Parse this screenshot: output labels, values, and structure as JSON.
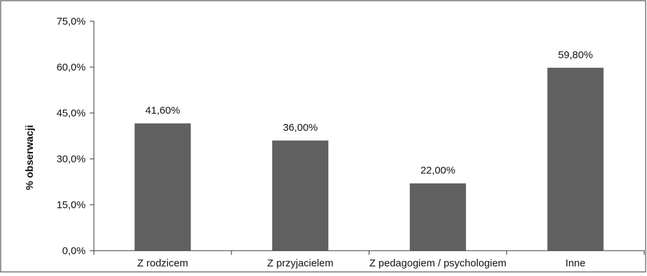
{
  "chart_data": {
    "type": "bar",
    "title": "",
    "xlabel": "",
    "ylabel": "% obserwacji",
    "ylim": [
      0,
      75
    ],
    "yticks": [
      0,
      15,
      30,
      45,
      60,
      75
    ],
    "ytick_labels": [
      "0,0%",
      "15,0%",
      "30,0%",
      "45,0%",
      "60,0%",
      "75,0%"
    ],
    "categories": [
      "Z rodzicem",
      "Z przyjacielem",
      "Z pedagogiem / psychologiem",
      "Inne"
    ],
    "values": [
      41.6,
      36.0,
      22.0,
      59.8
    ],
    "data_labels": [
      "41,60%",
      "36,00%",
      "22,00%",
      "59,80%"
    ],
    "bar_color": "#606060",
    "grid": false,
    "legend": "none"
  }
}
